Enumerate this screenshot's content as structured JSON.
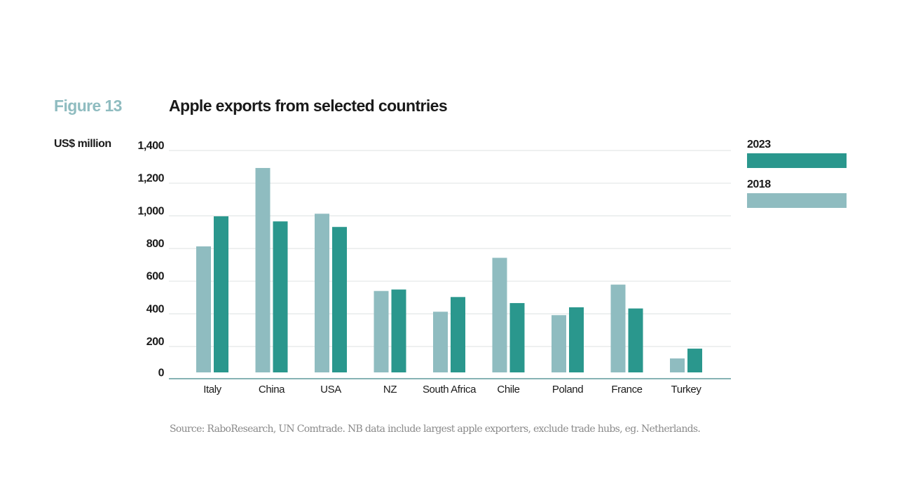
{
  "figure_label": "Figure 13",
  "source": "Source: RaboResearch, UN Comtrade. NB data include largest apple exporters, exclude trade hubs, eg. Netherlands.",
  "colors": {
    "series_2023": "#2a978d",
    "series_2018": "#8fbcc0",
    "gridline": "#e3e8e8",
    "axis": "#5f9a9c",
    "figure_label": "#8fbcc0"
  },
  "chart_data": {
    "type": "bar",
    "title": "Apple exports from selected countries",
    "xlabel": "",
    "ylabel": "US$ million",
    "ylim": [
      0,
      1400
    ],
    "yticks": [
      0,
      200,
      400,
      600,
      800,
      1000,
      1200,
      1400
    ],
    "ytick_labels": [
      "0",
      "200",
      "400",
      "600",
      "800",
      "1,000",
      "1,200",
      "1,400"
    ],
    "grid": true,
    "legend_position": "right",
    "categories": [
      "Italy",
      "China",
      "USA",
      "NZ",
      "South Africa",
      "Chile",
      "Poland",
      "France",
      "Turkey"
    ],
    "series": [
      {
        "name": "2018",
        "color": "#8fbcc0",
        "values": [
          813,
          1293,
          1013,
          540,
          413,
          743,
          392,
          579,
          127
        ]
      },
      {
        "name": "2023",
        "color": "#2a978d",
        "values": [
          997,
          966,
          932,
          549,
          503,
          466,
          440,
          433,
          187
        ]
      }
    ],
    "legend": [
      {
        "name": "2023",
        "color": "#2a978d"
      },
      {
        "name": "2018",
        "color": "#8fbcc0"
      }
    ]
  }
}
